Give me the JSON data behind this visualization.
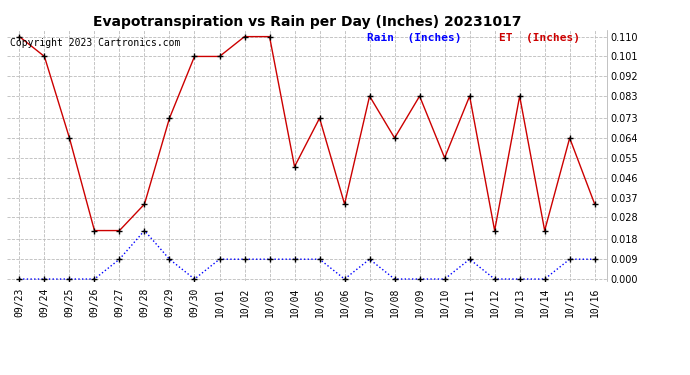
{
  "title": "Evapotranspiration vs Rain per Day (Inches) 20231017",
  "copyright": "Copyright 2023 Cartronics.com",
  "legend_rain": "Rain  (Inches)",
  "legend_et": "ET  (Inches)",
  "x_labels": [
    "09/23",
    "09/24",
    "09/25",
    "09/26",
    "09/27",
    "09/28",
    "09/29",
    "09/30",
    "10/01",
    "10/02",
    "10/03",
    "10/04",
    "10/05",
    "10/06",
    "10/07",
    "10/08",
    "10/09",
    "10/10",
    "10/11",
    "10/12",
    "10/13",
    "10/14",
    "10/15",
    "10/16"
  ],
  "rain": [
    0.0,
    0.0,
    0.0,
    0.0,
    0.009,
    0.022,
    0.009,
    0.0,
    0.009,
    0.009,
    0.009,
    0.009,
    0.009,
    0.0,
    0.009,
    0.0,
    0.0,
    0.0,
    0.009,
    0.0,
    0.0,
    0.0,
    0.009,
    0.009
  ],
  "et": [
    0.11,
    0.101,
    0.064,
    0.022,
    0.022,
    0.034,
    0.073,
    0.101,
    0.101,
    0.11,
    0.11,
    0.051,
    0.073,
    0.034,
    0.083,
    0.064,
    0.083,
    0.055,
    0.083,
    0.022,
    0.083,
    0.022,
    0.064,
    0.034
  ],
  "rain_color": "#0000ff",
  "et_color": "#cc0000",
  "marker_color": "#000000",
  "yticks": [
    0.0,
    0.009,
    0.018,
    0.028,
    0.037,
    0.046,
    0.055,
    0.064,
    0.073,
    0.083,
    0.092,
    0.101,
    0.11
  ],
  "bg_color": "#ffffff",
  "grid_color": "#bbbbbb",
  "title_fontsize": 10,
  "tick_fontsize": 7,
  "copyright_fontsize": 7,
  "legend_fontsize": 8
}
